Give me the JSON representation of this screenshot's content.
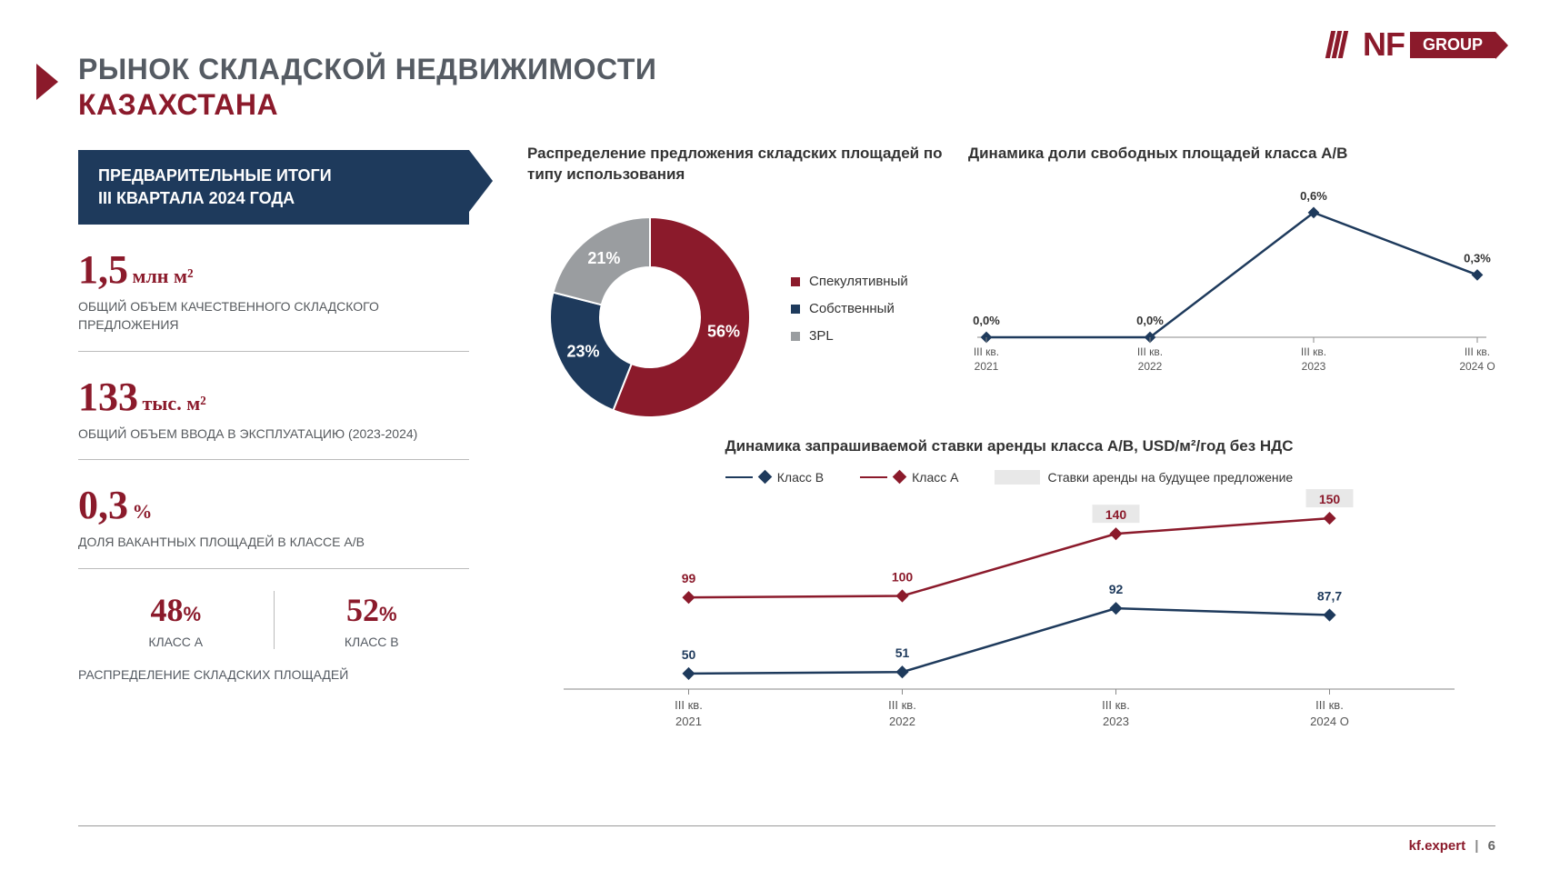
{
  "logo": {
    "nf": "NF",
    "group": "GROUP"
  },
  "title": {
    "line1": "РЫНОК СКЛАДСКОЙ НЕДВИЖИМОСТИ",
    "line2": "КАЗАХСТАНА"
  },
  "banner": {
    "line1": "ПРЕДВАРИТЕЛЬНЫЕ ИТОГИ",
    "line2": "III КВАРТАЛА 2024 ГОДА"
  },
  "stats": [
    {
      "value": "1,5",
      "unit": "млн м²",
      "desc": "ОБЩИЙ ОБЪЕМ КАЧЕСТВЕННОГО СКЛАДСКОГО ПРЕДЛОЖЕНИЯ"
    },
    {
      "value": "133",
      "unit": "тыс. м²",
      "desc": "ОБЩИЙ ОБЪЕМ ВВОДА В ЭКСПЛУАТАЦИЮ (2023-2024)"
    },
    {
      "value": "0,3",
      "unit": "%",
      "desc": "ДОЛЯ ВАКАНТНЫХ ПЛОЩАДЕЙ В КЛАССЕ А/В"
    }
  ],
  "split": {
    "a": {
      "value": "48",
      "pct": "%",
      "label": "КЛАСС А"
    },
    "b": {
      "value": "52",
      "pct": "%",
      "label": "КЛАСС В"
    },
    "caption": "РАСПРЕДЕЛЕНИЕ СКЛАДСКИХ ПЛОЩАДЕЙ"
  },
  "donut": {
    "title": "Распределение предложения складских площадей по типу использования",
    "type": "donut",
    "slices": [
      {
        "label": "Спекулятивный",
        "value": 56,
        "color": "#8b1a2b",
        "text": "56%"
      },
      {
        "label": "Собственный",
        "value": 23,
        "color": "#1e3a5c",
        "text": "23%"
      },
      {
        "label": "3PL",
        "value": 21,
        "color": "#9a9da0",
        "text": "21%"
      }
    ],
    "inner_radius": 55,
    "outer_radius": 110,
    "label_fontsize": 18,
    "label_color": "#ffffff"
  },
  "vacancy": {
    "title": "Динамика доли свободных площадей класса А/В",
    "type": "line",
    "categories": [
      "III кв.\n2021",
      "III кв.\n2022",
      "III кв.\n2023",
      "III кв.\n2024 О"
    ],
    "values": [
      0.0,
      0.0,
      0.6,
      0.3
    ],
    "labels": [
      "0,0%",
      "0,0%",
      "0,6%",
      "0,3%"
    ],
    "ylim": [
      0,
      0.7
    ],
    "line_color": "#1e3a5c",
    "marker": "diamond",
    "marker_size": 9,
    "label_fontsize": 13,
    "axis_fontsize": 12,
    "axis_color": "#555"
  },
  "rent": {
    "title": "Динамика запрашиваемой ставки аренды класса А/В, USD/м²/год без НДС",
    "type": "line",
    "categories": [
      "III кв.\n2021",
      "III кв.\n2022",
      "III кв.\n2023",
      "III кв.\n2024 О"
    ],
    "series": [
      {
        "name": "Класс В",
        "color": "#1e3a5c",
        "values": [
          50,
          51,
          92,
          87.7
        ],
        "labels": [
          "50",
          "51",
          "92",
          "87,7"
        ],
        "highlight": [
          false,
          false,
          false,
          false
        ]
      },
      {
        "name": "Класс А",
        "color": "#8b1a2b",
        "values": [
          99,
          100,
          140,
          150
        ],
        "labels": [
          "99",
          "100",
          "140",
          "150"
        ],
        "highlight": [
          false,
          false,
          true,
          true
        ]
      }
    ],
    "ylim": [
      40,
      160
    ],
    "legend_future": "Ставки аренды на будущее предложение",
    "highlight_bg": "#e8e8e8",
    "marker": "diamond",
    "line_width": 2.5,
    "label_fontsize": 14,
    "axis_fontsize": 13,
    "axis_color": "#555"
  },
  "footer": {
    "site": "kf.expert",
    "page": "6"
  }
}
